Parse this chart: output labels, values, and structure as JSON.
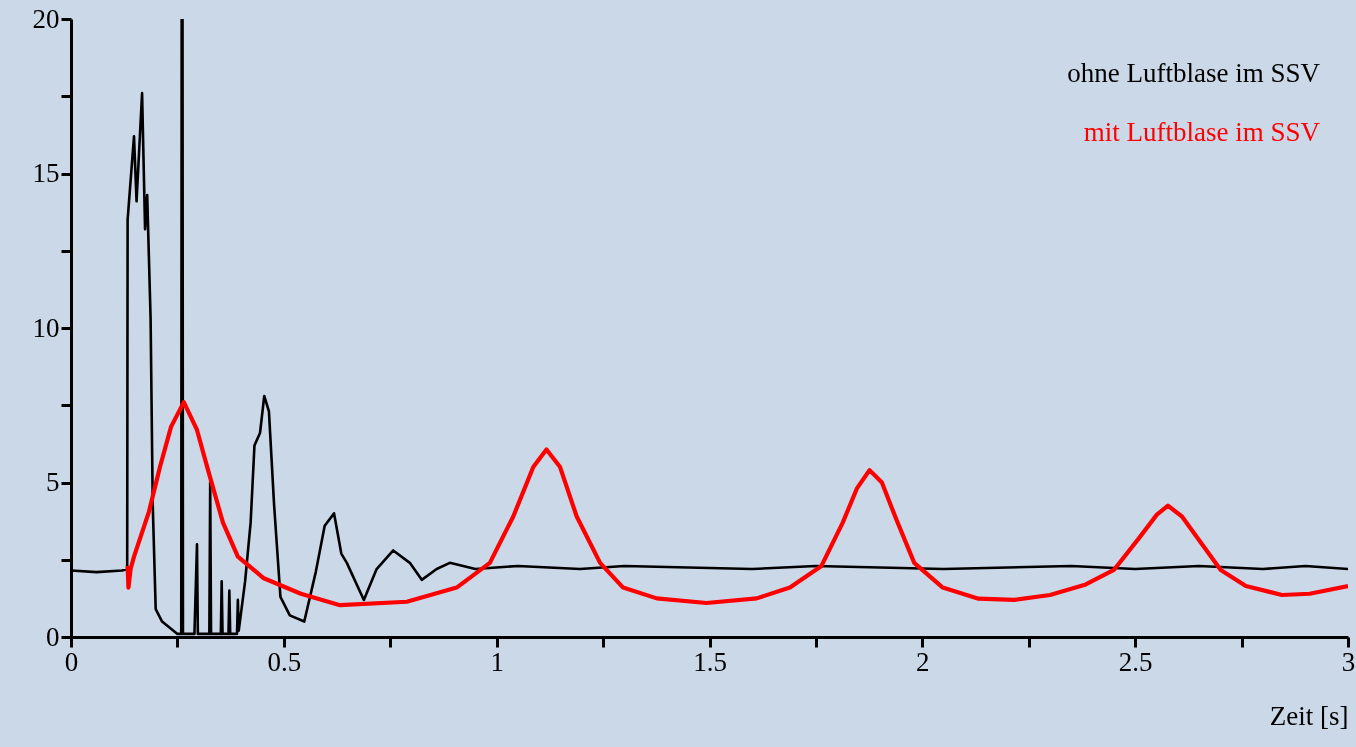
{
  "chart_data": {
    "type": "line",
    "xlabel": "Zeit [s]",
    "xlim": [
      0,
      3
    ],
    "ylim": [
      0,
      20
    ],
    "xticks": [
      0,
      {
        "value": 0.25,
        "label": null
      },
      0.5,
      {
        "value": 0.75,
        "label": null
      },
      1,
      {
        "value": 1.25,
        "label": null
      },
      1.5,
      {
        "value": 1.75,
        "label": null
      },
      2,
      {
        "value": 2.25,
        "label": null
      },
      2.5,
      {
        "value": 2.75,
        "label": null
      },
      3
    ],
    "yticks": [
      0,
      {
        "value": 2.5,
        "label": null
      },
      5,
      {
        "value": 7.5,
        "label": null
      },
      10,
      {
        "value": 12.5,
        "label": null
      },
      15,
      {
        "value": 17.5,
        "label": null
      },
      20
    ],
    "grid": false,
    "legend": "top right",
    "marker": "none",
    "line_style": "solid",
    "series": [
      {
        "name": "ohne Luftblase im SSV",
        "color": "#000000",
        "x": [
          0,
          0.06,
          0.12,
          0.132,
          0.133,
          0.148,
          0.154,
          0.167,
          0.174,
          0.179,
          0.187,
          0.192,
          0.199,
          0.214,
          0.25,
          0.259,
          0.26,
          0.262,
          0.263,
          0.29,
          0.296,
          0.298,
          0.325,
          0.327,
          0.329,
          0.352,
          0.354,
          0.356,
          0.37,
          0.372,
          0.374,
          0.39,
          0.392,
          0.394,
          0.409,
          0.422,
          0.431,
          0.444,
          0.454,
          0.465,
          0.477,
          0.492,
          0.514,
          0.548,
          0.575,
          0.596,
          0.618,
          0.635,
          0.648,
          0.688,
          0.718,
          0.757,
          0.796,
          0.824,
          0.859,
          0.89,
          0.95,
          1.05,
          1.196,
          1.3,
          1.45,
          1.6,
          1.75,
          1.9,
          2.05,
          2.2,
          2.35,
          2.5,
          2.65,
          2.8,
          2.9,
          3.0
        ],
        "values": [
          2.15,
          2.1,
          2.15,
          2.2,
          13.5,
          16.2,
          14.1,
          17.6,
          13.2,
          14.3,
          10.3,
          4.3,
          0.9,
          0.5,
          0.1,
          0.1,
          20,
          20,
          0.1,
          0.1,
          3.0,
          0.1,
          0.1,
          5.0,
          0.1,
          0.1,
          1.8,
          0.1,
          0.1,
          1.5,
          0.1,
          0.1,
          1.2,
          0.2,
          1.8,
          3.7,
          6.2,
          6.6,
          7.8,
          7.3,
          4.3,
          1.3,
          0.7,
          0.5,
          2.1,
          3.6,
          4.0,
          2.7,
          2.4,
          1.2,
          2.2,
          2.8,
          2.4,
          1.85,
          2.2,
          2.4,
          2.2,
          2.3,
          2.2,
          2.3,
          2.25,
          2.2,
          2.3,
          2.25,
          2.2,
          2.25,
          2.3,
          2.2,
          2.3,
          2.2,
          2.3,
          2.2
        ]
      },
      {
        "name": "mit Luftblase im SSV",
        "color": "#ff0000",
        "x": [
          0.133,
          0.135,
          0.14,
          0.148,
          0.183,
          0.209,
          0.235,
          0.265,
          0.296,
          0.322,
          0.357,
          0.392,
          0.453,
          0.54,
          0.632,
          0.789,
          0.906,
          0.984,
          1.039,
          1.086,
          1.117,
          1.149,
          1.188,
          1.243,
          1.297,
          1.376,
          1.493,
          1.611,
          1.689,
          1.763,
          1.813,
          1.846,
          1.876,
          1.905,
          1.939,
          1.981,
          2.048,
          2.132,
          2.216,
          2.3,
          2.384,
          2.45,
          2.509,
          2.551,
          2.577,
          2.61,
          2.652,
          2.701,
          2.76,
          2.845,
          2.91,
          3.0
        ],
        "values": [
          2.3,
          1.6,
          2.2,
          2.6,
          4.05,
          5.5,
          6.8,
          7.6,
          6.7,
          5.4,
          3.7,
          2.6,
          1.9,
          1.4,
          1.03,
          1.14,
          1.6,
          2.4,
          3.9,
          5.5,
          6.07,
          5.5,
          3.9,
          2.4,
          1.6,
          1.25,
          1.1,
          1.25,
          1.6,
          2.3,
          3.7,
          4.8,
          5.4,
          5.0,
          3.8,
          2.4,
          1.6,
          1.24,
          1.2,
          1.36,
          1.7,
          2.17,
          3.2,
          3.96,
          4.25,
          3.9,
          3.1,
          2.17,
          1.65,
          1.36,
          1.4,
          1.65
        ]
      }
    ]
  }
}
